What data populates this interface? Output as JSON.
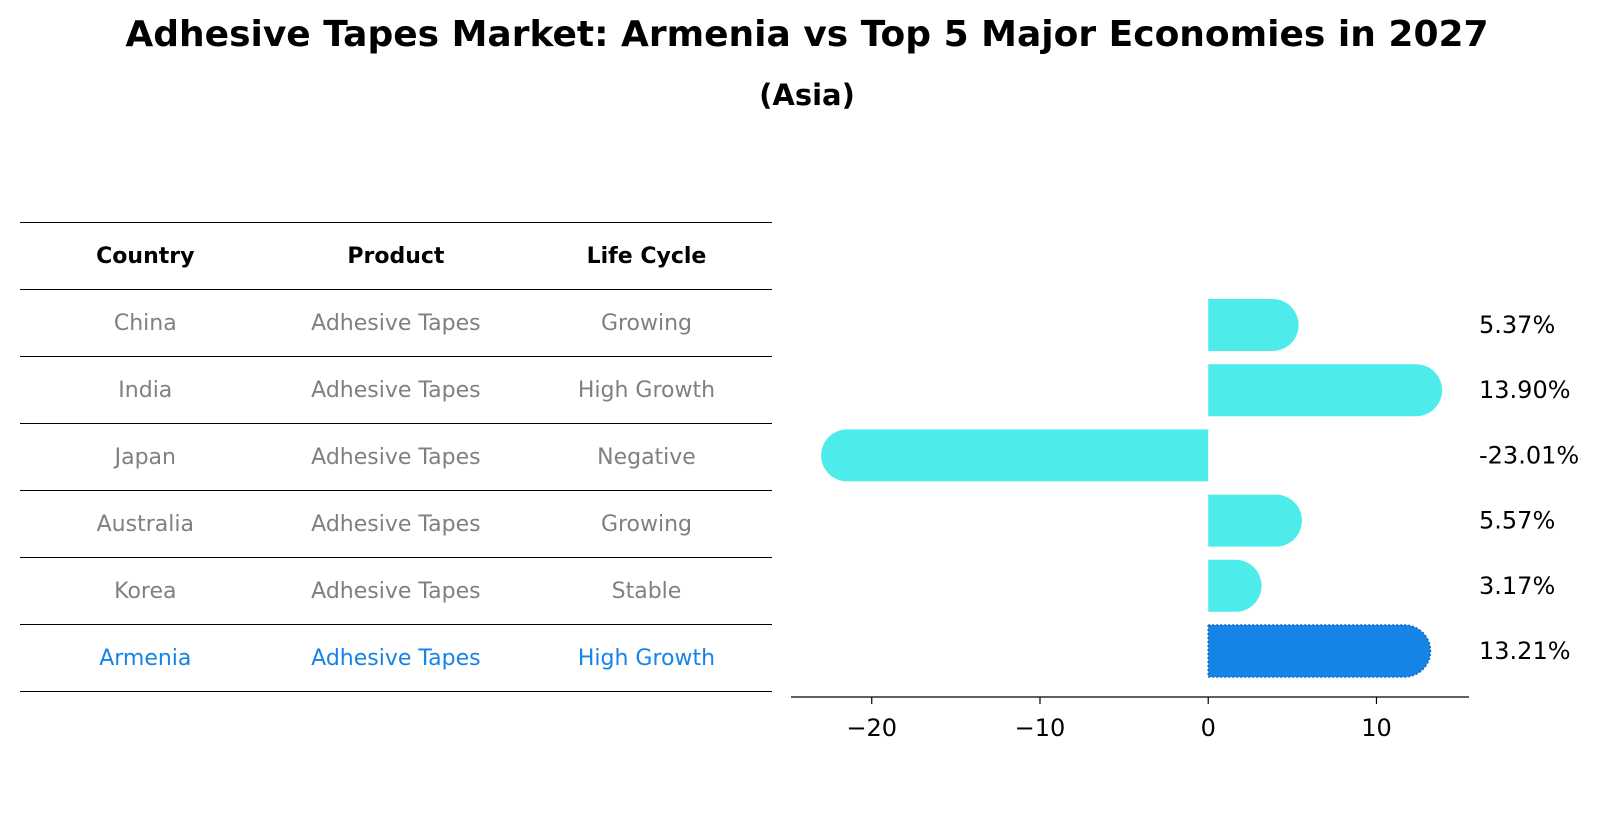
{
  "title": "Adhesive Tapes Market: Armenia vs Top 5 Major Economies in 2027",
  "subtitle": "(Asia)",
  "table": {
    "headers": [
      "Country",
      "Product",
      "Life Cycle"
    ],
    "rows": [
      [
        "China",
        "Adhesive Tapes",
        "Growing"
      ],
      [
        "India",
        "Adhesive Tapes",
        "High Growth"
      ],
      [
        "Japan",
        "Adhesive Tapes",
        "Negative"
      ],
      [
        "Australia",
        "Adhesive Tapes",
        "Growing"
      ],
      [
        "Korea",
        "Adhesive Tapes",
        "Stable"
      ],
      [
        "Armenia",
        "Adhesive Tapes",
        "High Growth"
      ]
    ]
  },
  "colors": {
    "bar": "#4deceb",
    "highlight": "#1683e6",
    "muted_text": "#808080"
  },
  "chart_data": {
    "type": "bar",
    "orientation": "horizontal",
    "categories": [
      "China",
      "India",
      "Japan",
      "Australia",
      "Korea",
      "Armenia"
    ],
    "values": [
      5.37,
      13.9,
      -23.01,
      5.57,
      3.17,
      13.21
    ],
    "value_labels": [
      "5.37%",
      "13.90%",
      "-23.01%",
      "5.57%",
      "3.17%",
      "13.21%"
    ],
    "highlight": "Armenia",
    "xlim": [
      -24.8,
      15.5
    ],
    "xticks": [
      -20,
      -10,
      0,
      10
    ],
    "xtick_labels": [
      "−20",
      "−10",
      "0",
      "10"
    ],
    "xlabel": "",
    "ylabel": ""
  }
}
